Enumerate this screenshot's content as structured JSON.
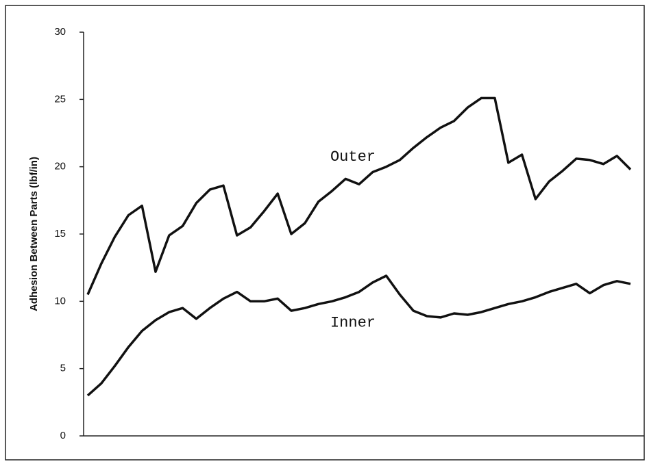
{
  "chart_data": {
    "type": "line",
    "y_label": "Adhesion Between Parts (lbf/in)",
    "ylim": [
      0,
      30
    ],
    "yticks": [
      0,
      5,
      10,
      15,
      20,
      25,
      30
    ],
    "grid": false,
    "series": [
      {
        "name": "Outer",
        "color": "#111111",
        "values": [
          10.5,
          12.8,
          14.8,
          16.4,
          17.1,
          12.2,
          14.9,
          15.6,
          17.3,
          18.3,
          18.6,
          14.9,
          15.5,
          16.7,
          18.0,
          15.0,
          15.8,
          17.4,
          18.2,
          19.1,
          18.7,
          19.6,
          20.0,
          20.5,
          21.4,
          22.2,
          22.9,
          23.4,
          24.4,
          25.1,
          25.1,
          20.3,
          20.9,
          17.6,
          18.9,
          19.7,
          20.6,
          20.5,
          20.2,
          20.8,
          19.8
        ]
      },
      {
        "name": "Inner",
        "color": "#111111",
        "values": [
          3.0,
          3.9,
          5.2,
          6.6,
          7.8,
          8.6,
          9.2,
          9.5,
          8.7,
          9.5,
          10.2,
          10.7,
          10.0,
          10.0,
          10.2,
          9.3,
          9.5,
          9.8,
          10.0,
          10.3,
          10.7,
          11.4,
          11.9,
          10.5,
          9.3,
          8.9,
          8.8,
          9.1,
          9.0,
          9.2,
          9.5,
          9.8,
          10.0,
          10.3,
          10.7,
          11.0,
          11.3,
          10.6,
          11.2,
          11.5,
          11.3
        ]
      }
    ]
  }
}
